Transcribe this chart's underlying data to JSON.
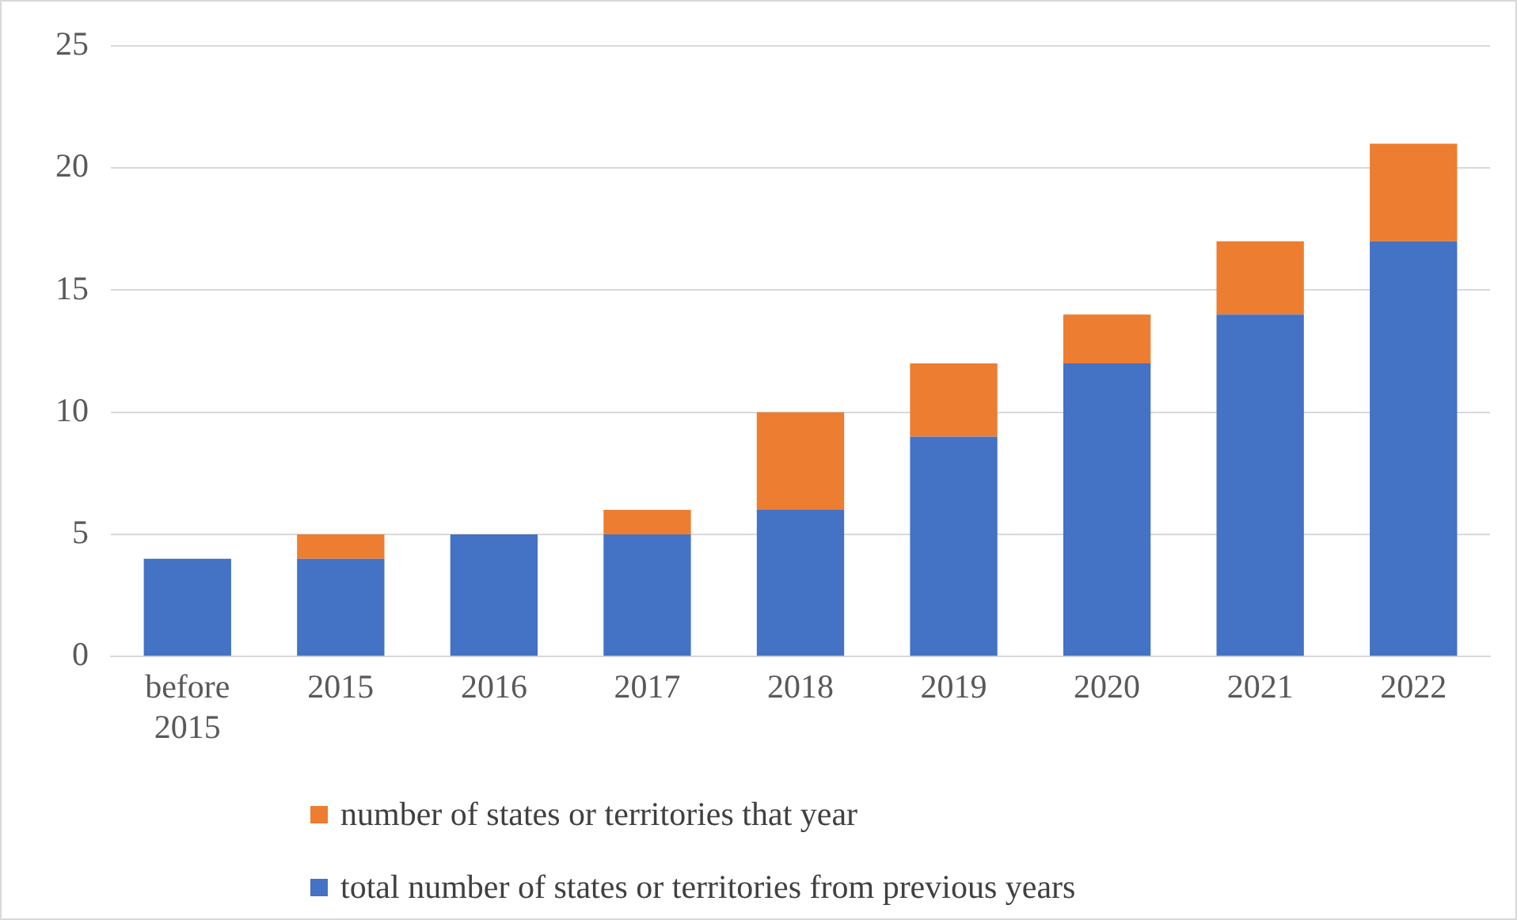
{
  "chart_data": {
    "type": "bar",
    "stacked": true,
    "categories": [
      "before 2015",
      "2015",
      "2016",
      "2017",
      "2018",
      "2019",
      "2020",
      "2021",
      "2022"
    ],
    "series": [
      {
        "name": "total number of states or territories from previous years",
        "color": "#4472c4",
        "values": [
          4,
          4,
          5,
          5,
          6,
          9,
          12,
          14,
          17
        ]
      },
      {
        "name": "number of states or territories that year",
        "color": "#ed7d31",
        "values": [
          0,
          1,
          0,
          1,
          4,
          3,
          2,
          3,
          4
        ]
      }
    ],
    "ylim": [
      0,
      25
    ],
    "yticks": [
      0,
      5,
      10,
      15,
      20,
      25
    ],
    "grid": "y",
    "legend": "bottom"
  }
}
